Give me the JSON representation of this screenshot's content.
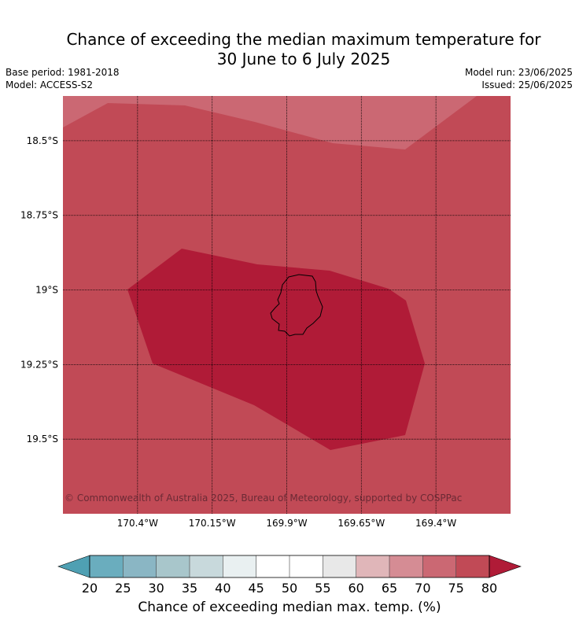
{
  "title_line1": "Chance of exceeding the median maximum temperature for",
  "title_line2": "30 June to 6 July 2025",
  "base_period": "Base period: 1981-2018",
  "model": "Model: ACCESS-S2",
  "model_run": "Model run: 23/06/2025",
  "issued": "Issued: 25/06/2025",
  "copyright": "© Commonwealth of Australia 2025, Bureau of Meteorology, supported by COSPPac",
  "map": {
    "lon_range": [
      -170.65,
      -169.15
    ],
    "lat_range": [
      -19.75,
      -18.35
    ],
    "lat_ticks": [
      {
        "value": -18.5,
        "label": "18.5°S"
      },
      {
        "value": -18.75,
        "label": "18.75°S"
      },
      {
        "value": -19.0,
        "label": "19°S"
      },
      {
        "value": -19.25,
        "label": "19.25°S"
      },
      {
        "value": -19.5,
        "label": "19.5°S"
      }
    ],
    "lon_ticks": [
      {
        "value": -170.4,
        "label": "170.4°W"
      },
      {
        "value": -170.15,
        "label": "170.15°W"
      },
      {
        "value": -169.9,
        "label": "169.9°W"
      },
      {
        "value": -169.65,
        "label": "169.65°W"
      },
      {
        "value": -169.4,
        "label": "169.4°W"
      }
    ],
    "regions": [
      {
        "band": "75-80",
        "color": "#c14a56"
      },
      {
        "band": "70-75",
        "color": "#cb6873"
      },
      {
        "band": "80+",
        "color": "#b01b37"
      }
    ]
  },
  "colorbar": {
    "label": "Chance of exceeding median max. temp. (%)",
    "ticks": [
      "20",
      "25",
      "30",
      "35",
      "40",
      "45",
      "50",
      "55",
      "60",
      "65",
      "70",
      "75",
      "80"
    ],
    "colors": [
      "#6aadbe",
      "#8ab6c4",
      "#a8c6cb",
      "#c8d9dc",
      "#e9f0f1",
      "#ffffff",
      "#ffffff",
      "#e8e8e8",
      "#e0b6b9",
      "#d58c94",
      "#cb6873",
      "#c14a56"
    ],
    "under_color": "#4fa0b3",
    "over_color": "#b01b37"
  }
}
